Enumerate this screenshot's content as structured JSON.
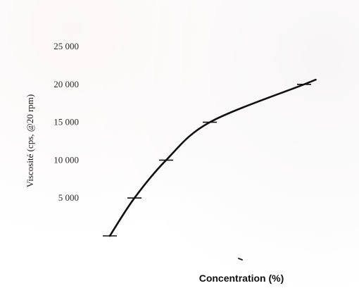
{
  "chart_data": {
    "type": "line",
    "xlabel": "Concentration (%)",
    "ylabel": "Viscosité (cps, @20 rpm)",
    "ylim": [
      0,
      25000
    ],
    "yticks": [
      {
        "value": 5000,
        "label": "5 000"
      },
      {
        "value": 10000,
        "label": "10 000"
      },
      {
        "value": 15000,
        "label": "15 000"
      },
      {
        "value": 20000,
        "label": "20 000"
      },
      {
        "value": 25000,
        "label": "25 000"
      }
    ],
    "x_tick_labels_visible": false,
    "grid": false,
    "legend": "none",
    "series": [
      {
        "values": [
          0,
          5000,
          10000,
          15000,
          20000
        ]
      }
    ],
    "colors": {
      "line": "#111111",
      "text": "#222222"
    }
  }
}
